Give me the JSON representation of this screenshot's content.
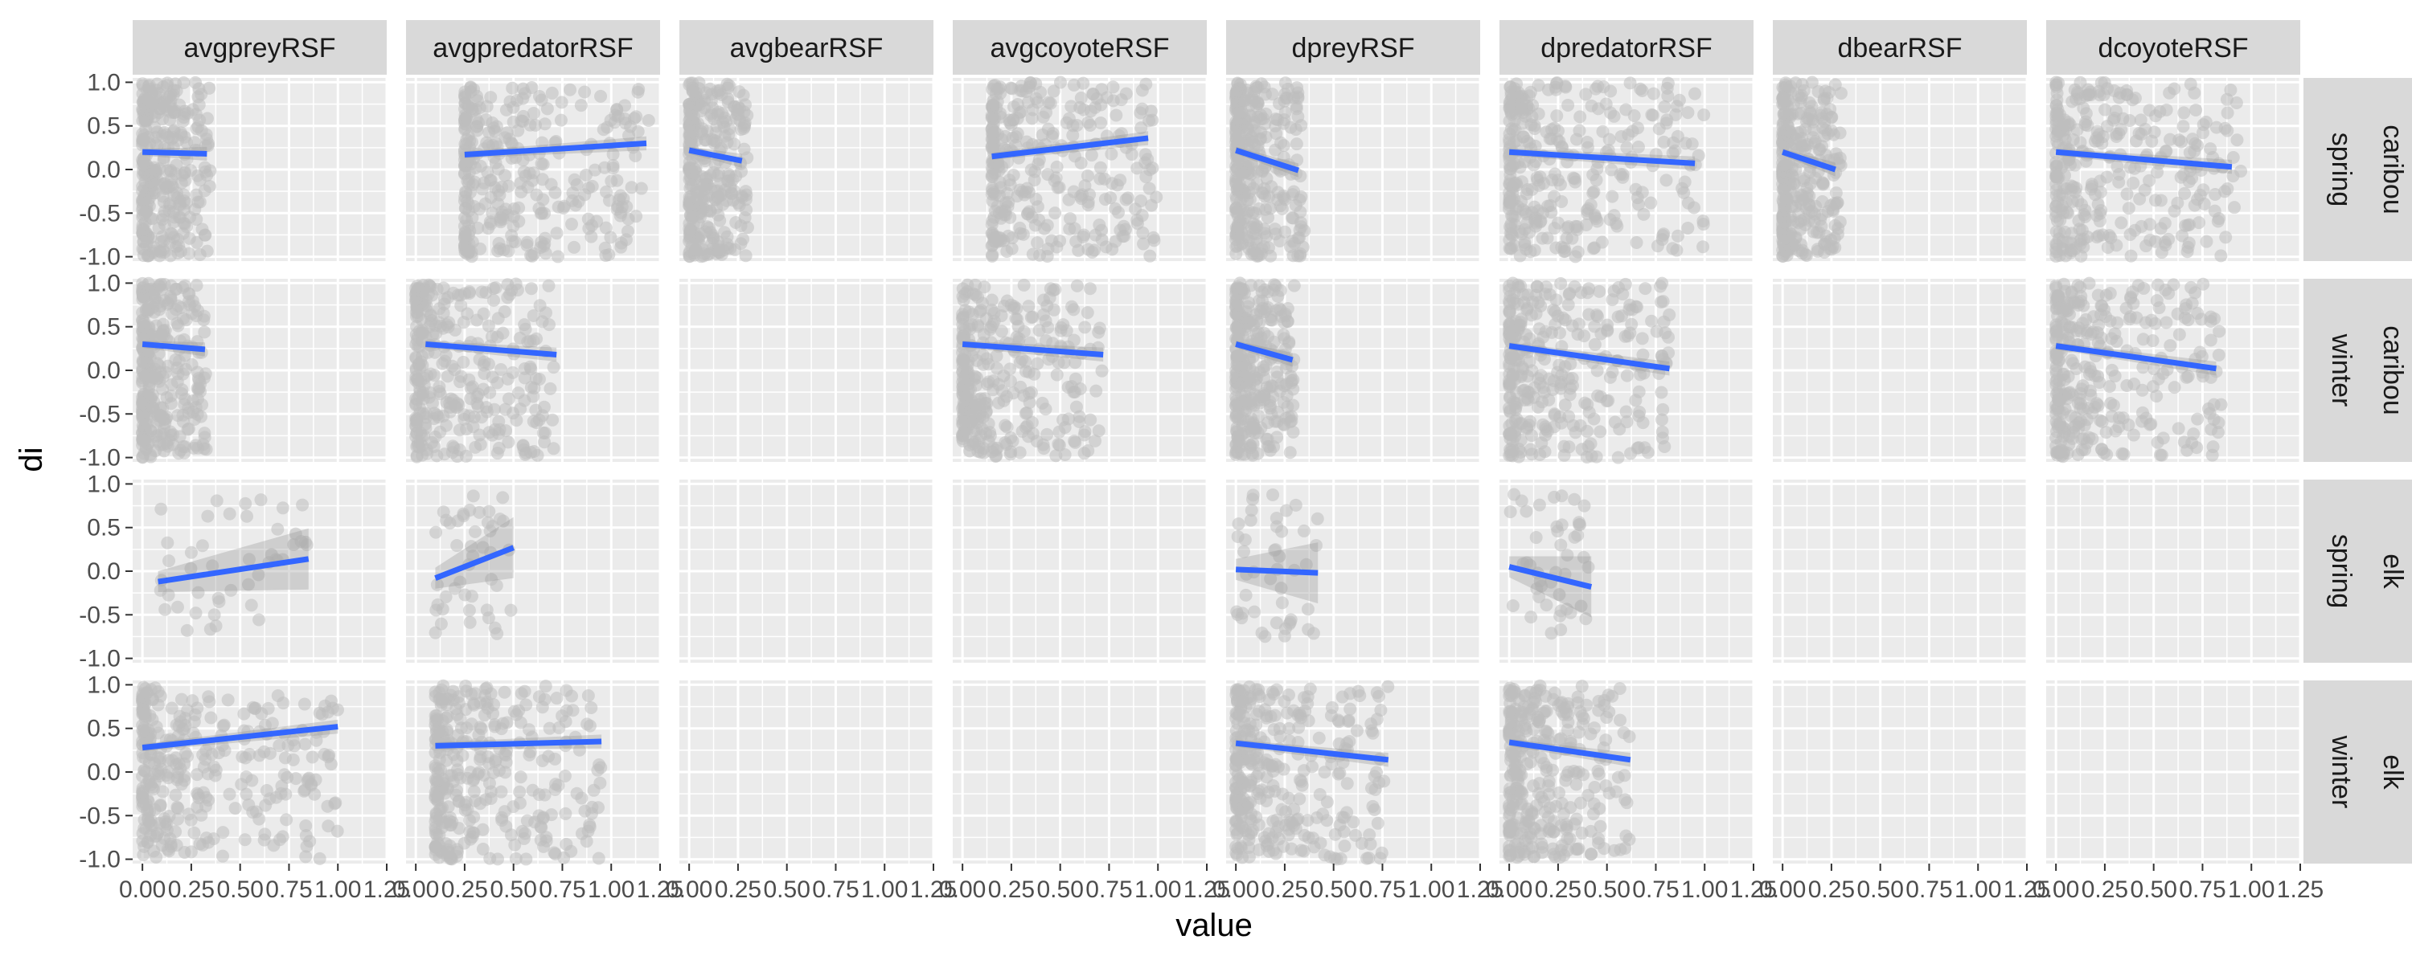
{
  "chart_data": {
    "type": "scatter",
    "facet_columns": [
      "avgpreyRSF",
      "avgpredatorRSF",
      "avgbearRSF",
      "avgcoyoteRSF",
      "dpreyRSF",
      "dpredatorRSF",
      "dbearRSF",
      "dcoyoteRSF"
    ],
    "facet_rows": [
      {
        "season": "spring",
        "species": "caribou"
      },
      {
        "season": "winter",
        "species": "caribou"
      },
      {
        "season": "spring",
        "species": "elk"
      },
      {
        "season": "winter",
        "species": "elk"
      }
    ],
    "xlabel": "value",
    "ylabel": "di",
    "xlim": [
      -0.05,
      1.25
    ],
    "ylim": [
      -1.05,
      1.05
    ],
    "x_ticks": [
      0.0,
      0.25,
      0.5,
      0.75,
      1.0,
      1.25
    ],
    "x_tick_labels": [
      "0.00",
      "0.25",
      "0.50",
      "0.75",
      "1.00",
      "1.25"
    ],
    "y_ticks": [
      -1.0,
      -0.5,
      0.0,
      0.5,
      1.0
    ],
    "y_tick_labels": [
      "-1.0",
      "-0.5",
      "0.0",
      "0.5",
      "1.0"
    ],
    "grid": true,
    "colors": {
      "panel_bg": "#ebebeb",
      "grid": "#ffffff",
      "strip_bg": "#d9d9d9",
      "points": "#bebebe",
      "fit_line": "#3366ff",
      "ribbon": "#999999"
    },
    "panels": [
      {
        "row": 0,
        "col": 0,
        "x_range": [
          0.0,
          0.35
        ],
        "y_range": [
          -1.0,
          1.0
        ],
        "density": "dense",
        "fit": {
          "x": [
            0.0,
            0.33
          ],
          "y": [
            0.2,
            0.18
          ]
        }
      },
      {
        "row": 0,
        "col": 1,
        "x_range": [
          0.25,
          1.2
        ],
        "y_range": [
          -1.0,
          1.0
        ],
        "density": "dense",
        "fit": {
          "x": [
            0.25,
            1.18
          ],
          "y": [
            0.17,
            0.3
          ]
        }
      },
      {
        "row": 0,
        "col": 2,
        "x_range": [
          0.0,
          0.3
        ],
        "y_range": [
          -1.0,
          1.0
        ],
        "density": "dense",
        "fit": {
          "x": [
            0.0,
            0.27
          ],
          "y": [
            0.22,
            0.1
          ]
        }
      },
      {
        "row": 0,
        "col": 3,
        "x_range": [
          0.15,
          1.0
        ],
        "y_range": [
          -1.0,
          1.0
        ],
        "density": "dense",
        "fit": {
          "x": [
            0.15,
            0.95
          ],
          "y": [
            0.15,
            0.36
          ]
        }
      },
      {
        "row": 0,
        "col": 4,
        "x_range": [
          0.0,
          0.35
        ],
        "y_range": [
          -1.0,
          1.0
        ],
        "density": "dense",
        "fit": {
          "x": [
            0.0,
            0.32
          ],
          "y": [
            0.22,
            -0.01
          ]
        }
      },
      {
        "row": 0,
        "col": 5,
        "x_range": [
          0.0,
          1.0
        ],
        "y_range": [
          -1.0,
          1.0
        ],
        "density": "dense",
        "fit": {
          "x": [
            0.0,
            0.95
          ],
          "y": [
            0.2,
            0.07
          ]
        }
      },
      {
        "row": 0,
        "col": 6,
        "x_range": [
          0.0,
          0.3
        ],
        "y_range": [
          -1.0,
          1.0
        ],
        "density": "dense",
        "fit": {
          "x": [
            0.0,
            0.27
          ],
          "y": [
            0.2,
            0.0
          ]
        }
      },
      {
        "row": 0,
        "col": 7,
        "x_range": [
          0.0,
          0.95
        ],
        "y_range": [
          -1.0,
          1.0
        ],
        "density": "dense",
        "fit": {
          "x": [
            0.0,
            0.9
          ],
          "y": [
            0.2,
            0.03
          ]
        }
      },
      {
        "row": 1,
        "col": 0,
        "x_range": [
          0.0,
          0.33
        ],
        "y_range": [
          -1.0,
          1.0
        ],
        "density": "dense",
        "fit": {
          "x": [
            0.0,
            0.32
          ],
          "y": [
            0.3,
            0.24
          ]
        }
      },
      {
        "row": 1,
        "col": 1,
        "x_range": [
          0.0,
          0.72
        ],
        "y_range": [
          -1.0,
          1.0
        ],
        "density": "dense",
        "fit": {
          "x": [
            0.05,
            0.72
          ],
          "y": [
            0.3,
            0.18
          ]
        }
      },
      {
        "row": 1,
        "col": 3,
        "x_range": [
          0.0,
          0.72
        ],
        "y_range": [
          -1.0,
          1.0
        ],
        "density": "dense",
        "fit": {
          "x": [
            0.0,
            0.72
          ],
          "y": [
            0.3,
            0.18
          ]
        }
      },
      {
        "row": 1,
        "col": 4,
        "x_range": [
          0.0,
          0.3
        ],
        "y_range": [
          -1.0,
          1.0
        ],
        "density": "dense",
        "fit": {
          "x": [
            0.0,
            0.29
          ],
          "y": [
            0.3,
            0.12
          ]
        }
      },
      {
        "row": 1,
        "col": 5,
        "x_range": [
          0.0,
          0.82
        ],
        "y_range": [
          -1.0,
          1.0
        ],
        "density": "dense",
        "fit": {
          "x": [
            0.0,
            0.82
          ],
          "y": [
            0.28,
            0.02
          ]
        }
      },
      {
        "row": 1,
        "col": 7,
        "x_range": [
          0.0,
          0.85
        ],
        "y_range": [
          -1.0,
          1.0
        ],
        "density": "dense",
        "fit": {
          "x": [
            0.0,
            0.82
          ],
          "y": [
            0.28,
            0.02
          ]
        }
      },
      {
        "row": 2,
        "col": 0,
        "x_range": [
          0.08,
          0.85
        ],
        "y_range": [
          -0.75,
          0.9
        ],
        "density": "sparse",
        "fit": {
          "x": [
            0.08,
            0.85
          ],
          "y": [
            -0.12,
            0.14
          ]
        }
      },
      {
        "row": 2,
        "col": 1,
        "x_range": [
          0.1,
          0.5
        ],
        "y_range": [
          -0.75,
          0.9
        ],
        "density": "sparse",
        "fit": {
          "x": [
            0.1,
            0.5
          ],
          "y": [
            -0.08,
            0.27
          ]
        }
      },
      {
        "row": 2,
        "col": 4,
        "x_range": [
          0.0,
          0.42
        ],
        "y_range": [
          -0.75,
          0.9
        ],
        "density": "sparse",
        "fit": {
          "x": [
            0.0,
            0.42
          ],
          "y": [
            0.02,
            -0.02
          ]
        }
      },
      {
        "row": 2,
        "col": 5,
        "x_range": [
          0.0,
          0.42
        ],
        "y_range": [
          -0.75,
          0.9
        ],
        "density": "sparse",
        "fit": {
          "x": [
            0.0,
            0.42
          ],
          "y": [
            0.05,
            -0.18
          ]
        }
      },
      {
        "row": 3,
        "col": 0,
        "x_range": [
          0.0,
          1.0
        ],
        "y_range": [
          -1.0,
          1.0
        ],
        "density": "dense",
        "fit": {
          "x": [
            0.0,
            1.0
          ],
          "y": [
            0.28,
            0.52
          ]
        }
      },
      {
        "row": 3,
        "col": 1,
        "x_range": [
          0.1,
          0.95
        ],
        "y_range": [
          -1.0,
          1.0
        ],
        "density": "dense",
        "fit": {
          "x": [
            0.1,
            0.95
          ],
          "y": [
            0.3,
            0.35
          ]
        }
      },
      {
        "row": 3,
        "col": 4,
        "x_range": [
          0.0,
          0.78
        ],
        "y_range": [
          -1.0,
          1.0
        ],
        "density": "dense",
        "fit": {
          "x": [
            0.0,
            0.78
          ],
          "y": [
            0.33,
            0.14
          ]
        }
      },
      {
        "row": 3,
        "col": 5,
        "x_range": [
          0.0,
          0.62
        ],
        "y_range": [
          -1.0,
          1.0
        ],
        "density": "dense",
        "fit": {
          "x": [
            0.0,
            0.62
          ],
          "y": [
            0.34,
            0.14
          ]
        }
      }
    ]
  }
}
